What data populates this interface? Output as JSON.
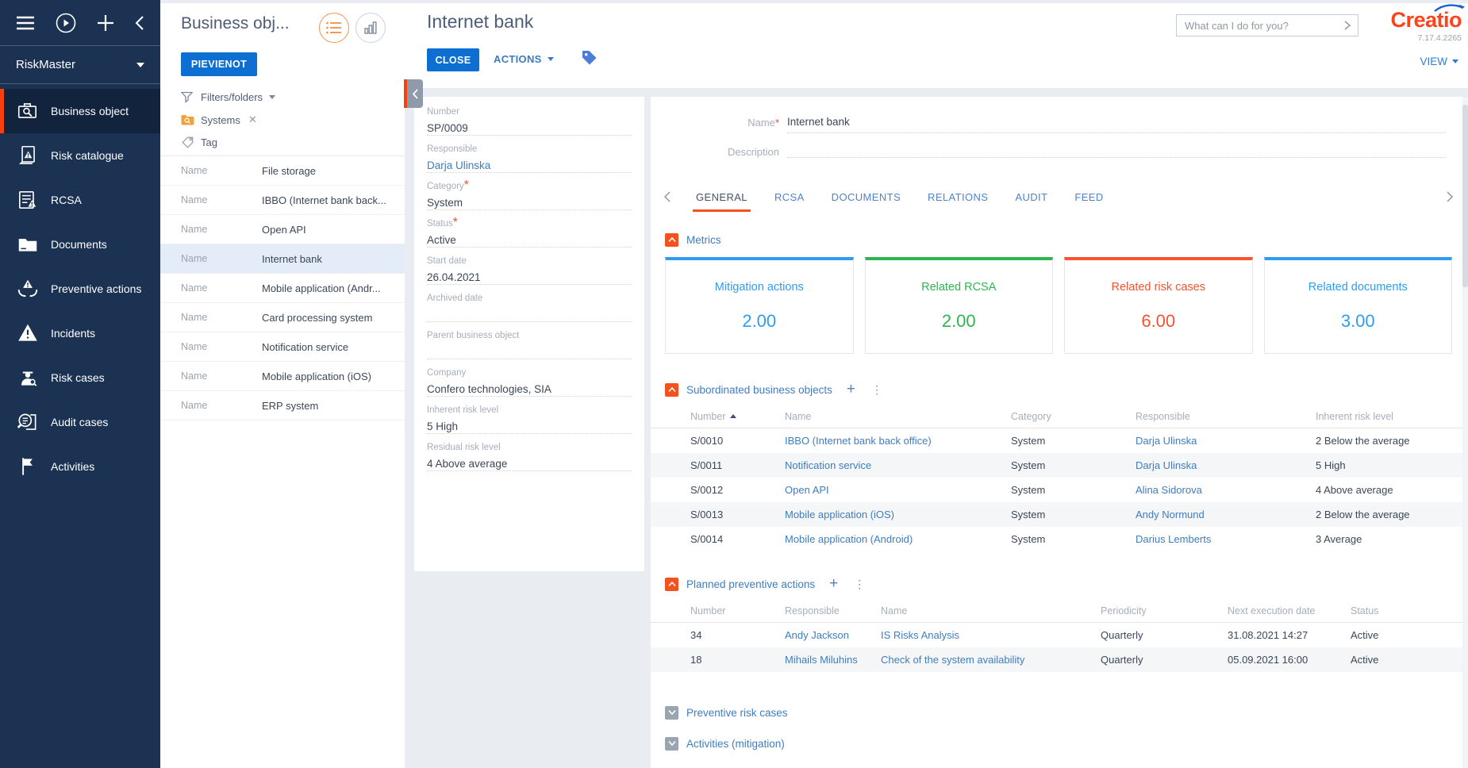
{
  "app": {
    "workplace": "RiskMaster",
    "search": {
      "placeholder": "What can I do for you?"
    },
    "logo_text": "Creatio",
    "version": "7.17.4.2265",
    "view_menu": "VIEW"
  },
  "colors": {
    "brand_orange": "#ff431d",
    "primary_blue": "#0d6fd2",
    "link_blue": "#3f7dbf",
    "sidebar_bg": "#1b3252",
    "active_marker": "#f8400e",
    "section_toggle_orange": "#f4511e",
    "metric_blue": "#2e9df1",
    "metric_green": "#2eb550",
    "metric_red": "#f55332"
  },
  "sidebar": {
    "items": [
      {
        "label": "Business object",
        "icon": "briefcase-search-icon",
        "active": true
      },
      {
        "label": "Risk catalogue",
        "icon": "risk-document-icon",
        "active": false
      },
      {
        "label": "RCSA",
        "icon": "checklist-warning-icon",
        "active": false
      },
      {
        "label": "Documents",
        "icon": "folder-icon",
        "active": false
      },
      {
        "label": "Preventive actions",
        "icon": "hands-warning-icon",
        "active": false
      },
      {
        "label": "Incidents",
        "icon": "warning-triangle-icon",
        "active": false
      },
      {
        "label": "Risk cases",
        "icon": "inspector-icon",
        "active": false
      },
      {
        "label": "Audit cases",
        "icon": "audit-magnifier-icon",
        "active": false
      },
      {
        "label": "Activities",
        "icon": "flag-icon",
        "active": false
      }
    ]
  },
  "list_panel": {
    "title": "Business obj...",
    "add_button": "PIEVIENOT",
    "filters_label": "Filters/folders",
    "folder_filter": "Systems",
    "tag_placeholder": "Tag",
    "row_label": "Name",
    "selected_index": 3,
    "rows": [
      "File storage",
      "IBBO (Internet bank back...",
      "Open API",
      "Internet bank",
      "Mobile application (Andr...",
      "Card processing system",
      "Notification service",
      "Mobile application (iOS)",
      "ERP system"
    ]
  },
  "detail_panel": {
    "fields": [
      {
        "label": "Number",
        "value": "SP/0009",
        "required": false,
        "link": false
      },
      {
        "label": "Responsible",
        "value": "Darja Ulinska",
        "required": false,
        "link": true
      },
      {
        "label": "Category",
        "value": "System",
        "required": true,
        "link": false
      },
      {
        "label": "Status",
        "value": "Active",
        "required": true,
        "link": false
      },
      {
        "label": "Start date",
        "value": "26.04.2021",
        "required": false,
        "link": false
      },
      {
        "label": "Archived date",
        "value": "",
        "required": false,
        "link": false
      },
      {
        "label": "Parent business object",
        "value": "",
        "required": false,
        "link": false
      },
      {
        "label": "Company",
        "value": "Confero technologies, SIA",
        "required": false,
        "link": false
      },
      {
        "label": "Inherent risk level",
        "value": "5 High",
        "required": false,
        "link": false
      },
      {
        "label": "Residual risk level",
        "value": "4 Above average",
        "required": false,
        "link": false
      }
    ]
  },
  "record": {
    "title": "Internet bank",
    "close_button": "CLOSE",
    "actions_button": "ACTIONS",
    "form": {
      "name_label": "Name",
      "name_value": "Internet bank",
      "description_label": "Description",
      "description_value": ""
    },
    "tabs": [
      "GENERAL",
      "RCSA",
      "DOCUMENTS",
      "RELATIONS",
      "AUDIT",
      "FEED"
    ],
    "active_tab": "GENERAL"
  },
  "sections": {
    "metrics": {
      "title": "Metrics",
      "cards": [
        {
          "label": "Mitigation actions",
          "value": "2.00",
          "color": "#2e9df1"
        },
        {
          "label": "Related RCSA",
          "value": "2.00",
          "color": "#2eb550"
        },
        {
          "label": "Related risk cases",
          "value": "6.00",
          "color": "#f55332"
        },
        {
          "label": "Related documents",
          "value": "3.00",
          "color": "#2e9df1"
        }
      ]
    },
    "subordinated": {
      "title": "Subordinated business objects",
      "sort_column": "Number",
      "columns": [
        "Number",
        "Name",
        "Category",
        "Responsible",
        "Inherent risk level"
      ],
      "rows": [
        [
          "S/0010",
          "IBBO (Internet bank back office)",
          "System",
          "Darja Ulinska",
          "2 Below the average"
        ],
        [
          "S/0011",
          "Notification service",
          "System",
          "Darja Ulinska",
          "5 High"
        ],
        [
          "S/0012",
          "Open API",
          "System",
          "Alina Sidorova",
          "4 Above average"
        ],
        [
          "S/0013",
          "Mobile application (iOS)",
          "System",
          "Andy Normund",
          "2 Below the average"
        ],
        [
          "S/0014",
          "Mobile application (Android)",
          "System",
          "Darius Lemberts",
          "3 Average"
        ]
      ]
    },
    "planned_actions": {
      "title": "Planned preventive actions",
      "columns": [
        "Number",
        "Responsible",
        "Name",
        "Periodicity",
        "Next execution date",
        "Status"
      ],
      "rows": [
        [
          "34",
          "Andy Jackson",
          "IS Risks Analysis",
          "Quarterly",
          "31.08.2021 14:27",
          "Active"
        ],
        [
          "18",
          "Mihails Miluhins",
          "Check of the system availability",
          "Quarterly",
          "05.09.2021 16:00",
          "Active"
        ]
      ]
    },
    "collapsed": [
      {
        "title": "Preventive risk cases"
      },
      {
        "title": "Activities (mitigation)"
      }
    ]
  }
}
